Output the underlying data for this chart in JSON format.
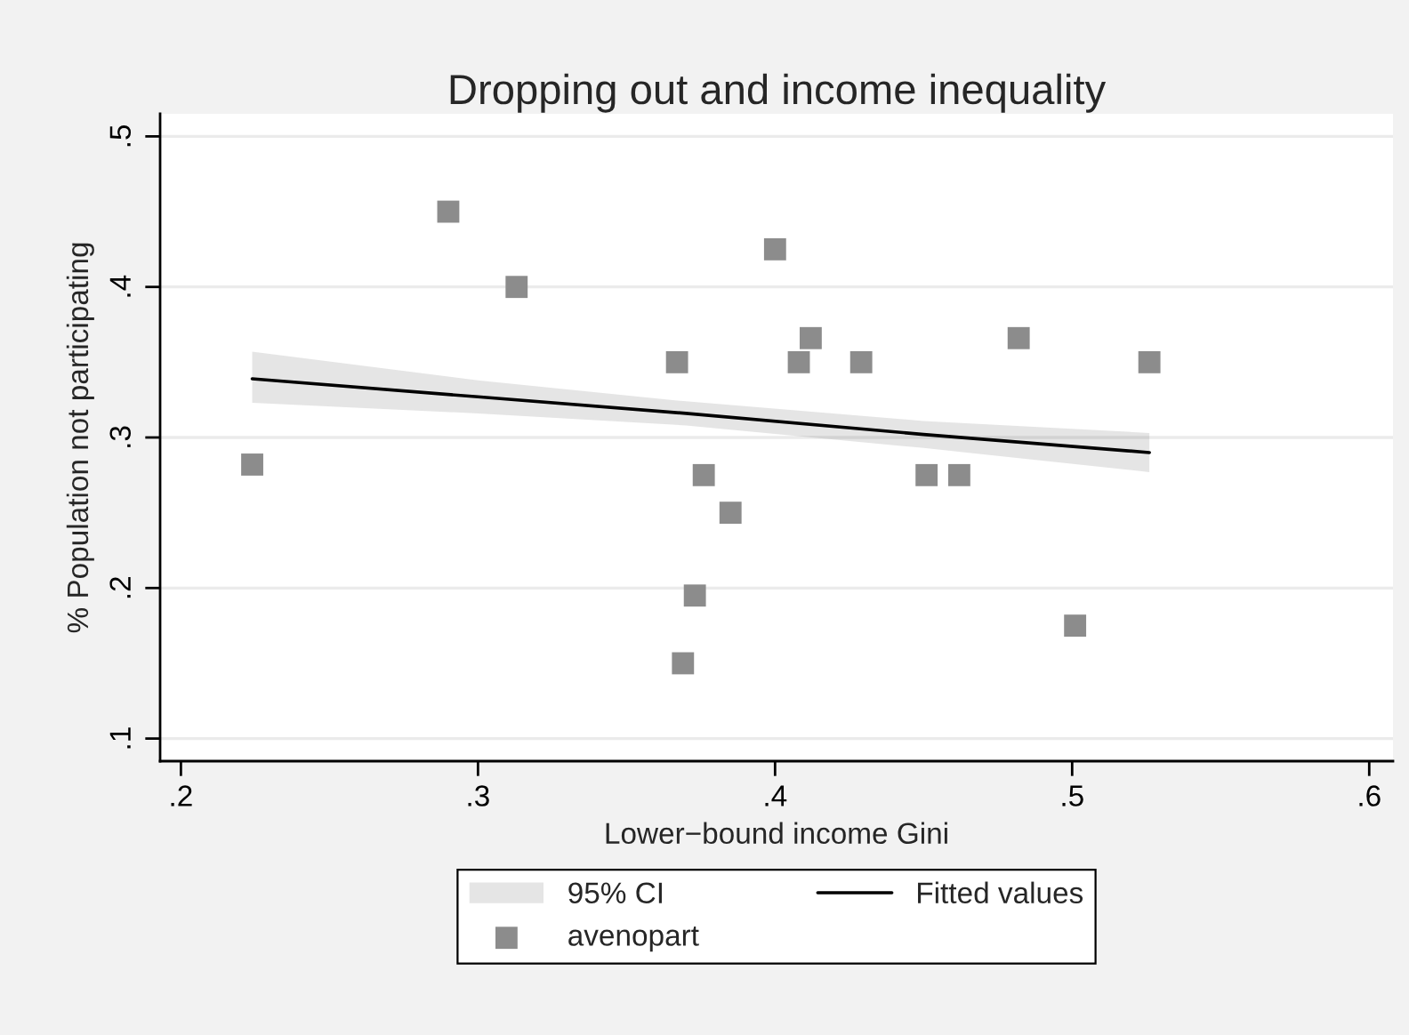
{
  "chart_data": {
    "type": "scatter",
    "title": "Dropping out and income inequality",
    "xlabel": "Lower−bound income Gini",
    "ylabel": "% Population not participating",
    "xlim": [
      0.193,
      0.608
    ],
    "ylim": [
      0.085,
      0.515
    ],
    "xticks": [
      {
        "value": 0.2,
        "label": ".2"
      },
      {
        "value": 0.3,
        "label": ".3"
      },
      {
        "value": 0.4,
        "label": ".4"
      },
      {
        "value": 0.5,
        "label": ".5"
      },
      {
        "value": 0.6,
        "label": ".6"
      }
    ],
    "yticks": [
      {
        "value": 0.1,
        "label": ".1"
      },
      {
        "value": 0.2,
        "label": ".2"
      },
      {
        "value": 0.3,
        "label": ".3"
      },
      {
        "value": 0.4,
        "label": ".4"
      },
      {
        "value": 0.5,
        "label": ".5"
      }
    ],
    "grid": "y",
    "legend": "bottom",
    "marker": "square",
    "annotations": [
      "95% CI"
    ],
    "series": [
      {
        "type": "line",
        "name": "Fitted values",
        "color": "#000000",
        "marker": "none",
        "x": [
          0.224,
          0.3,
          0.37,
          0.45,
          0.526
        ],
        "values": [
          0.339,
          0.327,
          0.316,
          0.302,
          0.29
        ],
        "lower": [
          0.323,
          0.316,
          0.308,
          0.293,
          0.277
        ],
        "upper": [
          0.357,
          0.338,
          0.324,
          0.311,
          0.303
        ]
      },
      {
        "type": "scatter",
        "name": "avenopart",
        "color": "#8c8c8c",
        "x": [
          0.224,
          0.29,
          0.313,
          0.367,
          0.376,
          0.385,
          0.373,
          0.369,
          0.4,
          0.412,
          0.408,
          0.429,
          0.482,
          0.526,
          0.451,
          0.462,
          0.501
        ],
        "values": [
          0.282,
          0.45,
          0.4,
          0.35,
          0.275,
          0.25,
          0.195,
          0.15,
          0.425,
          0.366,
          0.35,
          0.35,
          0.366,
          0.35,
          0.275,
          0.275,
          0.175
        ]
      }
    ]
  }
}
